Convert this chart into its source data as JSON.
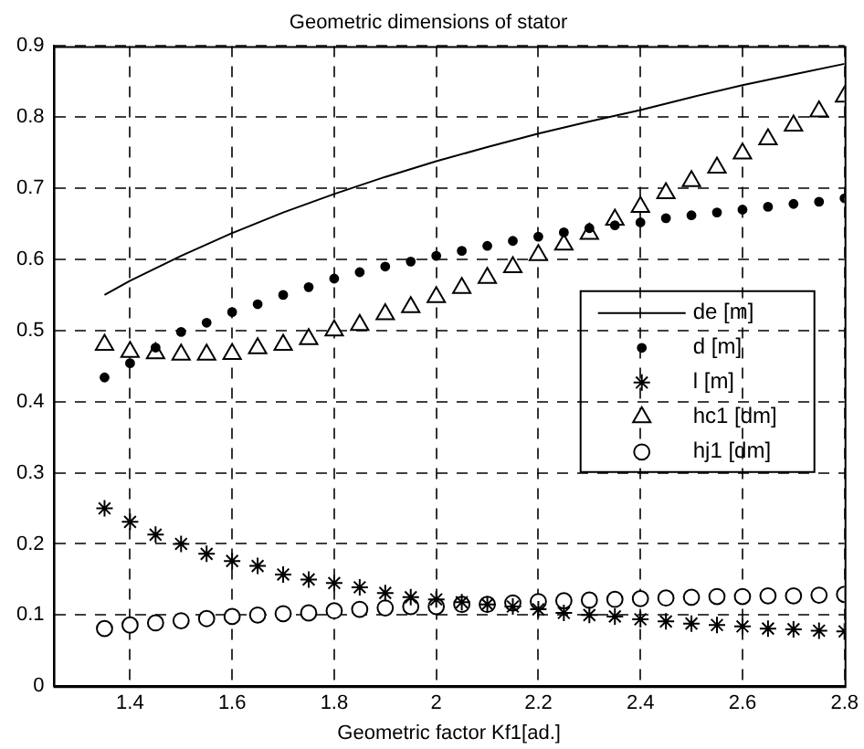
{
  "chart_data": {
    "type": "scatter",
    "title": "Geometric dimensions of stator",
    "xlabel": "Geometric factor Kf1[ad.]",
    "x": [
      1.35,
      1.4,
      1.45,
      1.5,
      1.55,
      1.6,
      1.65,
      1.7,
      1.75,
      1.8,
      1.85,
      1.9,
      1.95,
      2.0,
      2.05,
      2.1,
      2.15,
      2.2,
      2.25,
      2.3,
      2.35,
      2.4,
      2.45,
      2.5,
      2.55,
      2.6,
      2.65,
      2.7,
      2.75,
      2.8
    ],
    "xlim": [
      1.25,
      2.8
    ],
    "xticks": [
      1.4,
      1.6,
      1.8,
      2,
      2.2,
      2.4,
      2.6,
      2.8
    ],
    "ylim": [
      0,
      0.9
    ],
    "yticks": [
      0,
      0.1,
      0.2,
      0.3,
      0.4,
      0.5,
      0.6,
      0.7,
      0.8,
      0.9
    ],
    "grid": true,
    "legend": "right",
    "series": [
      {
        "name": "de [m]",
        "type": "line",
        "marker": "none",
        "line_style": "solid",
        "color": "#000000",
        "x": [
          1.35,
          1.4,
          1.5,
          1.6,
          1.7,
          1.8,
          1.9,
          2.0,
          2.1,
          2.2,
          2.3,
          2.4,
          2.5,
          2.6,
          2.7,
          2.8
        ],
        "values": [
          0.55,
          0.57,
          0.605,
          0.637,
          0.666,
          0.692,
          0.716,
          0.738,
          0.758,
          0.777,
          0.794,
          0.81,
          0.828,
          0.845,
          0.86,
          0.875
        ]
      },
      {
        "name": "d [m]",
        "type": "scatter",
        "marker": "circle",
        "color": "#000000",
        "values": [
          0.434,
          0.454,
          0.476,
          0.498,
          0.511,
          0.526,
          0.537,
          0.55,
          0.561,
          0.573,
          0.582,
          0.59,
          0.597,
          0.605,
          0.612,
          0.619,
          0.626,
          0.632,
          0.638,
          0.644,
          0.648,
          0.652,
          0.658,
          0.662,
          0.666,
          0.67,
          0.674,
          0.678,
          0.681,
          0.686
        ]
      },
      {
        "name": "l [m]",
        "type": "scatter",
        "marker": "cross",
        "color": "#000000",
        "values": [
          0.25,
          0.231,
          0.213,
          0.2,
          0.186,
          0.176,
          0.169,
          0.157,
          0.15,
          0.145,
          0.139,
          0.131,
          0.125,
          0.122,
          0.118,
          0.115,
          0.112,
          0.108,
          0.103,
          0.1,
          0.098,
          0.094,
          0.091,
          0.088,
          0.086,
          0.084,
          0.081,
          0.08,
          0.078,
          0.077
        ]
      },
      {
        "name": "hc1 [dm]",
        "type": "scatter",
        "marker": "triangle",
        "color": "#000000",
        "values": [
          0.48,
          0.47,
          0.468,
          0.466,
          0.466,
          0.467,
          0.475,
          0.48,
          0.488,
          0.5,
          0.508,
          0.523,
          0.533,
          0.547,
          0.56,
          0.574,
          0.589,
          0.606,
          0.621,
          0.636,
          0.656,
          0.674,
          0.693,
          0.71,
          0.729,
          0.749,
          0.769,
          0.788,
          0.808,
          0.829
        ]
      },
      {
        "name": "hj1 [dm]",
        "type": "scatter",
        "marker": "circle",
        "color": "#ffffff",
        "values": [
          0.081,
          0.086,
          0.089,
          0.092,
          0.095,
          0.098,
          0.1,
          0.102,
          0.103,
          0.106,
          0.108,
          0.11,
          0.112,
          0.112,
          0.115,
          0.115,
          0.117,
          0.119,
          0.12,
          0.121,
          0.122,
          0.123,
          0.124,
          0.125,
          0.126,
          0.126,
          0.127,
          0.127,
          0.128,
          0.129
        ]
      }
    ]
  }
}
